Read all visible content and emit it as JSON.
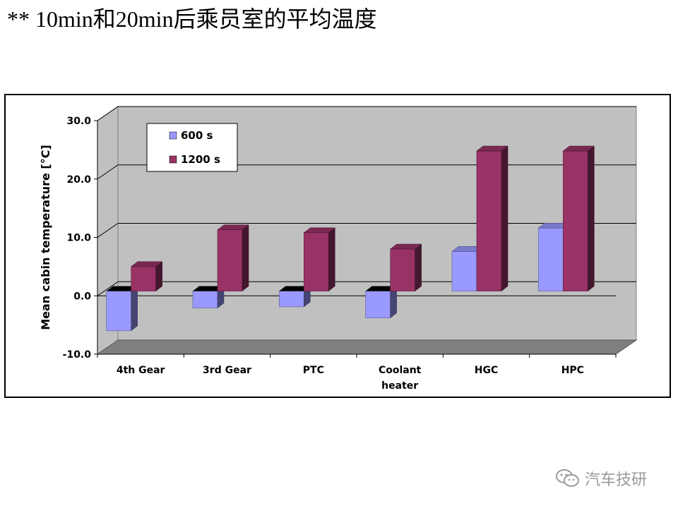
{
  "slide": {
    "title": "**  10min和20min后乘员室的平均温度"
  },
  "watermark": {
    "text": "汽车技研",
    "icon": "wechat-icon"
  },
  "colors": {
    "series_600": "#9999ff",
    "series_1200": "#993366",
    "plot_back_wall": "#c0c0c0",
    "plot_floor": "#7f7f7f"
  },
  "chart_data": {
    "type": "bar",
    "style": "3d-clustered-column",
    "title": "",
    "xlabel": "",
    "ylabel": "Mean cabin temperature [°C]",
    "ylim": [
      -10.0,
      30.0
    ],
    "yticks": [
      "30.0",
      "20.0",
      "10.0",
      "0.0",
      "-10.0"
    ],
    "ytick_values": [
      30,
      20,
      10,
      0,
      -10
    ],
    "grid": true,
    "legend_position": "top-left",
    "categories": [
      [
        "4th Gear"
      ],
      [
        "3rd Gear"
      ],
      [
        "PTC"
      ],
      [
        "Coolant",
        "heater"
      ],
      [
        "HGC"
      ],
      [
        "HPC"
      ]
    ],
    "series": [
      {
        "name": "600 s",
        "values": [
          -6.8,
          -2.9,
          -2.7,
          -4.6,
          6.8,
          10.8
        ]
      },
      {
        "name": "1200 s",
        "values": [
          4.2,
          10.5,
          10.0,
          7.2,
          24.0,
          24.0
        ]
      }
    ]
  }
}
